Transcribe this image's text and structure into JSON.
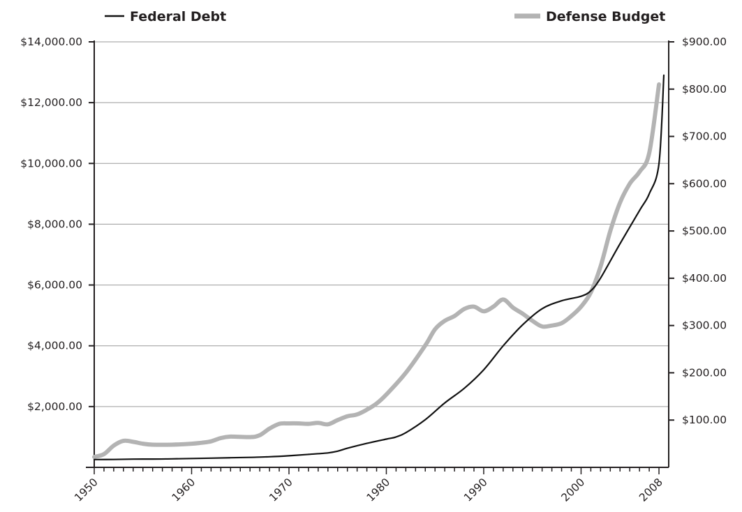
{
  "chart_data": {
    "type": "line",
    "title": "",
    "xlabel": "",
    "ylabel_left": "",
    "ylabel_right": "",
    "xlim": [
      1950,
      2009
    ],
    "x_ticks": [
      1950,
      1960,
      1970,
      1980,
      1990,
      2000,
      2008
    ],
    "x_tick_labels": [
      "1950",
      "1960",
      "1970",
      "1980",
      "1990",
      "2000",
      "2008"
    ],
    "ylim_left": [
      0,
      14000
    ],
    "y_ticks_left": [
      2000,
      4000,
      6000,
      8000,
      10000,
      12000,
      14000
    ],
    "y_tick_labels_left": [
      "$2,000.00",
      "$4,000.00",
      "$6,000.00",
      "$8,000.00",
      "$10,000.00",
      "$12,000.00",
      "$14,000.00"
    ],
    "ylim_right": [
      0,
      900
    ],
    "y_ticks_right": [
      100,
      200,
      300,
      400,
      500,
      600,
      700,
      800,
      900
    ],
    "y_tick_labels_right": [
      "$100.00",
      "$200.00",
      "$300.00",
      "$400.00",
      "$500.00",
      "$600.00",
      "$700.00",
      "$800.00",
      "$900.00"
    ],
    "grid": "horizontal",
    "legend_position": "top",
    "series": [
      {
        "name": "Federal Debt",
        "axis": "left",
        "color": "#111111",
        "x": [
          1950,
          1952,
          1954,
          1956,
          1958,
          1960,
          1962,
          1964,
          1966,
          1968,
          1970,
          1972,
          1974,
          1975,
          1976,
          1978,
          1980,
          1981,
          1982,
          1984,
          1986,
          1988,
          1990,
          1992,
          1994,
          1996,
          1998,
          2000,
          2001,
          2002,
          2004,
          2006,
          2007,
          2008,
          2008.5
        ],
        "values": [
          257,
          259,
          271,
          272,
          280,
          291,
          303,
          317,
          329,
          348,
          381,
          427,
          476,
          533,
          629,
          789,
          930,
          1000,
          1140,
          1570,
          2120,
          2600,
          3210,
          4000,
          4690,
          5220,
          5480,
          5630,
          5810,
          6230,
          7360,
          8450,
          9000,
          10000,
          12900
        ]
      },
      {
        "name": "Defense Budget",
        "axis": "right",
        "color": "#b3b3b3",
        "x": [
          1950,
          1951,
          1952,
          1953,
          1954,
          1955,
          1956,
          1958,
          1960,
          1961,
          1962,
          1963,
          1964,
          1966,
          1967,
          1968,
          1969,
          1970,
          1971,
          1972,
          1973,
          1974,
          1975,
          1976,
          1977,
          1978,
          1979,
          1980,
          1982,
          1984,
          1985,
          1986,
          1987,
          1988,
          1989,
          1990,
          1991,
          1992,
          1993,
          1994,
          1995,
          1996,
          1997,
          1998,
          1999,
          2000,
          2001,
          2002,
          2003,
          2004,
          2005,
          2006,
          2007,
          2008
        ],
        "values": [
          22,
          28,
          46,
          56,
          54,
          50,
          48,
          48,
          50,
          52,
          55,
          62,
          65,
          64,
          68,
          82,
          92,
          93,
          93,
          92,
          94,
          91,
          100,
          108,
          112,
          122,
          135,
          154,
          200,
          258,
          292,
          310,
          320,
          335,
          340,
          330,
          340,
          355,
          338,
          325,
          310,
          298,
          300,
          305,
          320,
          340,
          370,
          425,
          500,
          560,
          600,
          625,
          665,
          810
        ]
      }
    ]
  }
}
